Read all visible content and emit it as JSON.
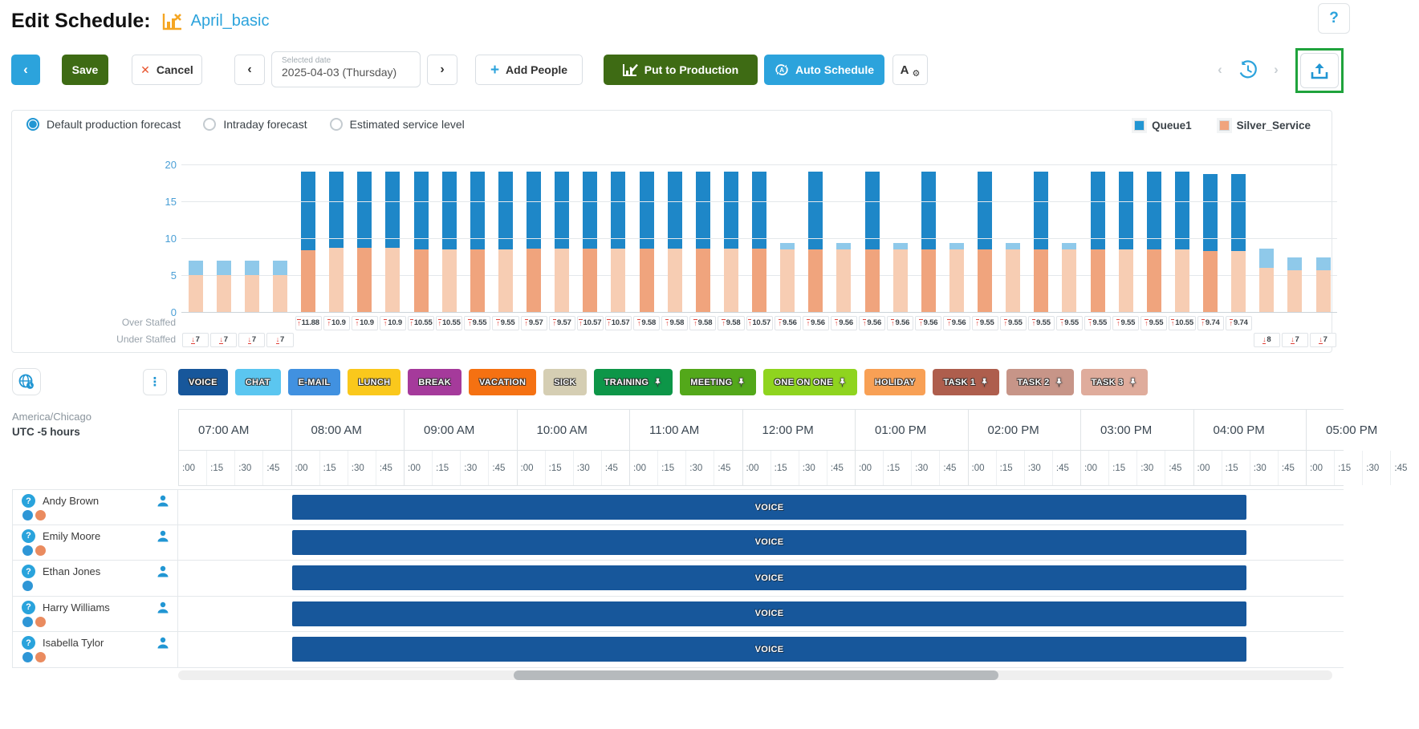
{
  "header": {
    "title": "Edit Schedule:",
    "schedule_name": "April_basic",
    "help_label": "?"
  },
  "toolbar": {
    "save": "Save",
    "cancel": "Cancel",
    "cancel_x": "✕",
    "selected_date_label": "Selected date",
    "selected_date_value": "2025-04-03 (Thursday)",
    "add_people": "Add People",
    "add_plus": "+",
    "put_to_production": "Put to Production",
    "auto_schedule": "Auto Schedule",
    "back_chevron": "‹",
    "prev_chevron": "‹",
    "next_chevron": "›"
  },
  "forecast": {
    "options": [
      {
        "label": "Default production forecast",
        "selected": true
      },
      {
        "label": "Intraday forecast",
        "selected": false
      },
      {
        "label": "Estimated service level",
        "selected": false
      }
    ],
    "legend": [
      {
        "label": "Queue1",
        "color": "#2196D3"
      },
      {
        "label": "Silver_Service",
        "color": "#F0A47D"
      }
    ],
    "over_staffed_label": "Over Staffed",
    "under_staffed_label": "Under Staffed"
  },
  "chart_data": {
    "type": "bar",
    "title": "",
    "xlabel": "",
    "ylabel": "",
    "ylim": [
      0,
      20
    ],
    "yticks": [
      0,
      5,
      10,
      15,
      20
    ],
    "grid": true,
    "legend_position": "top-right",
    "series_names": [
      "Queue1",
      "Silver_Service"
    ],
    "leading_slots": [
      {
        "queue1": 7,
        "silver": 5,
        "under_staffed": "7"
      },
      {
        "queue1": 7,
        "silver": 5,
        "under_staffed": "7"
      },
      {
        "queue1": 7,
        "silver": 5,
        "under_staffed": "7"
      },
      {
        "queue1": 7,
        "silver": 5,
        "under_staffed": "7"
      }
    ],
    "columns": [
      {
        "over_staffed": "11.88",
        "queue1": 19,
        "silver": 8.4
      },
      {
        "over_staffed": "10.9",
        "queue1": 19,
        "silver": 8.7
      },
      {
        "over_staffed": "10.9",
        "queue1": 19,
        "silver": 8.7
      },
      {
        "over_staffed": "10.9",
        "queue1": 19,
        "silver": 8.7
      },
      {
        "over_staffed": "10.55",
        "queue1": 19,
        "silver": 8.5
      },
      {
        "over_staffed": "10.55",
        "queue1": 19,
        "silver": 8.5
      },
      {
        "over_staffed": "9.55",
        "queue1": 19,
        "silver": 8.5
      },
      {
        "over_staffed": "9.55",
        "queue1": 19,
        "silver": 8.5
      },
      {
        "over_staffed": "9.57",
        "queue1": 19,
        "silver": 8.6
      },
      {
        "over_staffed": "9.57",
        "queue1": 19,
        "silver": 8.6
      },
      {
        "over_staffed": "10.57",
        "queue1": 19,
        "silver": 8.6
      },
      {
        "over_staffed": "10.57",
        "queue1": 19,
        "silver": 8.6
      },
      {
        "over_staffed": "9.58",
        "queue1": 19,
        "silver": 8.6
      },
      {
        "over_staffed": "9.58",
        "queue1": 19,
        "silver": 8.6
      },
      {
        "over_staffed": "9.58",
        "queue1": 19,
        "silver": 8.6
      },
      {
        "over_staffed": "9.58",
        "queue1": 19,
        "silver": 8.6
      },
      {
        "over_staffed": "10.57",
        "queue1": 19,
        "silver": 8.6
      },
      {
        "over_staffed": "9.56",
        "queue1": 9.4,
        "silver": 8.5
      },
      {
        "over_staffed": "9.56",
        "queue1": 19,
        "silver": 8.5
      },
      {
        "over_staffed": "9.56",
        "queue1": 9.4,
        "silver": 8.5
      },
      {
        "over_staffed": "9.56",
        "queue1": 19,
        "silver": 8.5
      },
      {
        "over_staffed": "9.56",
        "queue1": 9.4,
        "silver": 8.5
      },
      {
        "over_staffed": "9.56",
        "queue1": 19,
        "silver": 8.5
      },
      {
        "over_staffed": "9.56",
        "queue1": 9.4,
        "silver": 8.5
      },
      {
        "over_staffed": "9.55",
        "queue1": 19,
        "silver": 8.5
      },
      {
        "over_staffed": "9.55",
        "queue1": 9.4,
        "silver": 8.5
      },
      {
        "over_staffed": "9.55",
        "queue1": 19,
        "silver": 8.5
      },
      {
        "over_staffed": "9.55",
        "queue1": 9.4,
        "silver": 8.5
      },
      {
        "over_staffed": "9.55",
        "queue1": 19,
        "silver": 8.5
      },
      {
        "over_staffed": "9.55",
        "queue1": 19,
        "silver": 8.5
      },
      {
        "over_staffed": "9.55",
        "queue1": 19,
        "silver": 8.5
      },
      {
        "over_staffed": "10.55",
        "queue1": 19,
        "silver": 8.5
      },
      {
        "over_staffed": "9.74",
        "queue1": 18.7,
        "silver": 8.3
      },
      {
        "over_staffed": "9.74",
        "queue1": 18.7,
        "silver": 8.3
      }
    ],
    "trailing_slots": [
      {
        "queue1": 8.6,
        "silver": 6,
        "under_staffed": "8"
      },
      {
        "queue1": 7.4,
        "silver": 5.6,
        "under_staffed": "7"
      },
      {
        "queue1": 7.4,
        "silver": 5.6,
        "under_staffed": "7"
      }
    ]
  },
  "activities": [
    {
      "label": "VOICE",
      "color": "#17579B",
      "pinned": false
    },
    {
      "label": "CHAT",
      "color": "#5BC6F0",
      "pinned": false
    },
    {
      "label": "E-MAIL",
      "color": "#4191E0",
      "pinned": false
    },
    {
      "label": "LUNCH",
      "color": "#FAC81C",
      "pinned": false
    },
    {
      "label": "BREAK",
      "color": "#A53A9B",
      "pinned": false
    },
    {
      "label": "VACATION",
      "color": "#F57112",
      "pinned": false
    },
    {
      "label": "SICK",
      "color": "#D5CEB3",
      "pinned": false
    },
    {
      "label": "TRAINING",
      "color": "#0D9648",
      "pinned": true
    },
    {
      "label": "MEETING",
      "color": "#53A81A",
      "pinned": true
    },
    {
      "label": "ONE ON ONE",
      "color": "#8FD41F",
      "pinned": true
    },
    {
      "label": "HOLIDAY",
      "color": "#F8A055",
      "pinned": false
    },
    {
      "label": "TASK 1",
      "color": "#AE5E4D",
      "pinned": true
    },
    {
      "label": "TASK 2",
      "color": "#C79588",
      "pinned": true
    },
    {
      "label": "TASK 3",
      "color": "#DFAC9C",
      "pinned": true
    }
  ],
  "timezone": {
    "name": "America/Chicago",
    "offset": "UTC -5 hours"
  },
  "schedule": {
    "hours": [
      "07:00 AM",
      "08:00 AM",
      "09:00 AM",
      "10:00 AM",
      "11:00 AM",
      "12:00 PM",
      "01:00 PM",
      "02:00 PM",
      "03:00 PM",
      "04:00 PM",
      "05:00 PM"
    ],
    "quarters": [
      ":00",
      ":15",
      ":30",
      ":45"
    ],
    "shift_label": "VOICE",
    "shift_color": "#17579B",
    "employees": [
      {
        "name": "Andy Brown",
        "dots": [
          "blue",
          "orange"
        ]
      },
      {
        "name": "Emily Moore",
        "dots": [
          "blue",
          "orange"
        ]
      },
      {
        "name": "Ethan Jones",
        "dots": [
          "blue"
        ]
      },
      {
        "name": "Harry Williams",
        "dots": [
          "blue",
          "orange"
        ]
      },
      {
        "name": "Isabella Tylor",
        "dots": [
          "blue",
          "orange"
        ]
      }
    ]
  }
}
